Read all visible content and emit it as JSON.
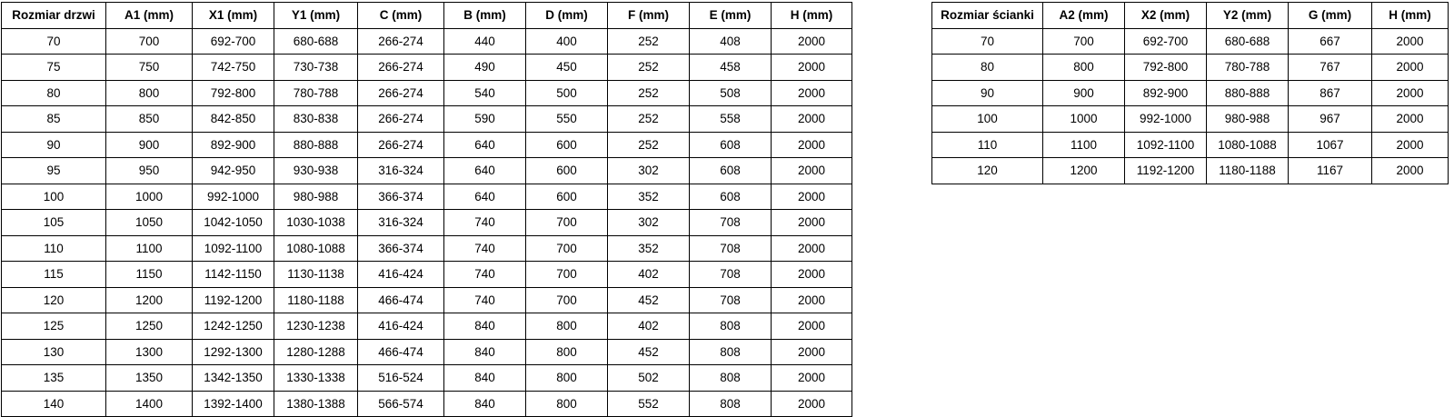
{
  "tables": [
    {
      "name": "door-sizes",
      "headers": [
        "Rozmiar drzwi",
        "A1 (mm)",
        "X1 (mm)",
        "Y1 (mm)",
        "C (mm)",
        "B (mm)",
        "D (mm)",
        "F (mm)",
        "E (mm)",
        "H (mm)"
      ],
      "rows": [
        [
          "70",
          "700",
          "692-700",
          "680-688",
          "266-274",
          "440",
          "400",
          "252",
          "408",
          "2000"
        ],
        [
          "75",
          "750",
          "742-750",
          "730-738",
          "266-274",
          "490",
          "450",
          "252",
          "458",
          "2000"
        ],
        [
          "80",
          "800",
          "792-800",
          "780-788",
          "266-274",
          "540",
          "500",
          "252",
          "508",
          "2000"
        ],
        [
          "85",
          "850",
          "842-850",
          "830-838",
          "266-274",
          "590",
          "550",
          "252",
          "558",
          "2000"
        ],
        [
          "90",
          "900",
          "892-900",
          "880-888",
          "266-274",
          "640",
          "600",
          "252",
          "608",
          "2000"
        ],
        [
          "95",
          "950",
          "942-950",
          "930-938",
          "316-324",
          "640",
          "600",
          "302",
          "608",
          "2000"
        ],
        [
          "100",
          "1000",
          "992-1000",
          "980-988",
          "366-374",
          "640",
          "600",
          "352",
          "608",
          "2000"
        ],
        [
          "105",
          "1050",
          "1042-1050",
          "1030-1038",
          "316-324",
          "740",
          "700",
          "302",
          "708",
          "2000"
        ],
        [
          "110",
          "1100",
          "1092-1100",
          "1080-1088",
          "366-374",
          "740",
          "700",
          "352",
          "708",
          "2000"
        ],
        [
          "115",
          "1150",
          "1142-1150",
          "1130-1138",
          "416-424",
          "740",
          "700",
          "402",
          "708",
          "2000"
        ],
        [
          "120",
          "1200",
          "1192-1200",
          "1180-1188",
          "466-474",
          "740",
          "700",
          "452",
          "708",
          "2000"
        ],
        [
          "125",
          "1250",
          "1242-1250",
          "1230-1238",
          "416-424",
          "840",
          "800",
          "402",
          "808",
          "2000"
        ],
        [
          "130",
          "1300",
          "1292-1300",
          "1280-1288",
          "466-474",
          "840",
          "800",
          "452",
          "808",
          "2000"
        ],
        [
          "135",
          "1350",
          "1342-1350",
          "1330-1338",
          "516-524",
          "840",
          "800",
          "502",
          "808",
          "2000"
        ],
        [
          "140",
          "1400",
          "1392-1400",
          "1380-1388",
          "566-574",
          "840",
          "800",
          "552",
          "808",
          "2000"
        ]
      ]
    },
    {
      "name": "wall-sizes",
      "headers": [
        "Rozmiar ścianki",
        "A2 (mm)",
        "X2 (mm)",
        "Y2 (mm)",
        "G (mm)",
        "H (mm)"
      ],
      "rows": [
        [
          "70",
          "700",
          "692-700",
          "680-688",
          "667",
          "2000"
        ],
        [
          "80",
          "800",
          "792-800",
          "780-788",
          "767",
          "2000"
        ],
        [
          "90",
          "900",
          "892-900",
          "880-888",
          "867",
          "2000"
        ],
        [
          "100",
          "1000",
          "992-1000",
          "980-988",
          "967",
          "2000"
        ],
        [
          "110",
          "1100",
          "1092-1100",
          "1080-1088",
          "1067",
          "2000"
        ],
        [
          "120",
          "1200",
          "1192-1200",
          "1180-1188",
          "1167",
          "2000"
        ]
      ]
    }
  ]
}
